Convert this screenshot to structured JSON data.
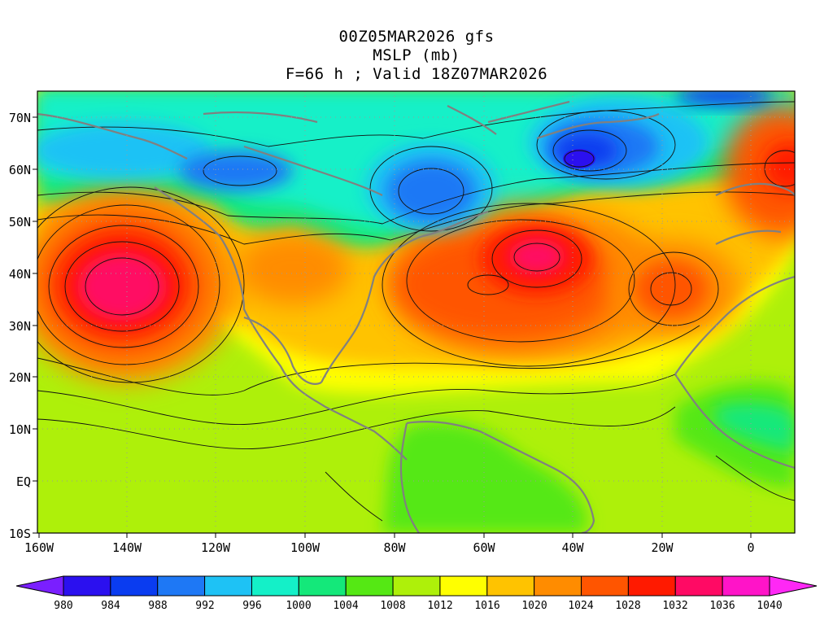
{
  "header": {
    "line1": "00Z05MAR2026 gfs",
    "line2": "MSLP (mb)",
    "line3": "F=66 h ; Valid 18Z07MAR2026"
  },
  "map": {
    "lat_labels": [
      "70N",
      "60N",
      "50N",
      "40N",
      "30N",
      "20N",
      "10N",
      "EQ",
      "10S"
    ],
    "lon_labels": [
      "160W",
      "140W",
      "120W",
      "100W",
      "80W",
      "60W",
      "40W",
      "20W",
      "0"
    ],
    "pressure_features": [
      {
        "type": "high",
        "region": "northeast Pacific",
        "peak_band": "1036-1040"
      },
      {
        "type": "high",
        "region": "central North Atlantic",
        "peak_band": "1036-1040"
      },
      {
        "type": "high",
        "region": "northwest Atlantic",
        "peak_band": "1028-1032"
      },
      {
        "type": "high",
        "region": "eastern Atlantic",
        "peak_band": "1028-1032"
      },
      {
        "type": "high",
        "region": "northern Europe",
        "peak_band": "1032-1036"
      },
      {
        "type": "low",
        "region": "south of Greenland",
        "peak_band": "980-984"
      },
      {
        "type": "low",
        "region": "Hudson Bay",
        "peak_band": "988-992"
      },
      {
        "type": "low",
        "region": "western Canada",
        "peak_band": "988-992"
      },
      {
        "type": "low",
        "region": "northern Alaska / Bering",
        "peak_band": "996-1000"
      }
    ]
  },
  "colorbar": {
    "labels": [
      "980",
      "984",
      "988",
      "992",
      "996",
      "1000",
      "1004",
      "1008",
      "1012",
      "1016",
      "1020",
      "1024",
      "1028",
      "1032",
      "1036",
      "1040"
    ],
    "colors": [
      "#7a1fff",
      "#2b10ef",
      "#0a3cf0",
      "#1e78f5",
      "#1ec2f5",
      "#14f0c8",
      "#14e87a",
      "#55e814",
      "#aef00a",
      "#ffff00",
      "#ffc300",
      "#ff8c00",
      "#ff5500",
      "#ff1a00",
      "#ff0a64",
      "#ff14c8",
      "#ff28f5"
    ]
  }
}
